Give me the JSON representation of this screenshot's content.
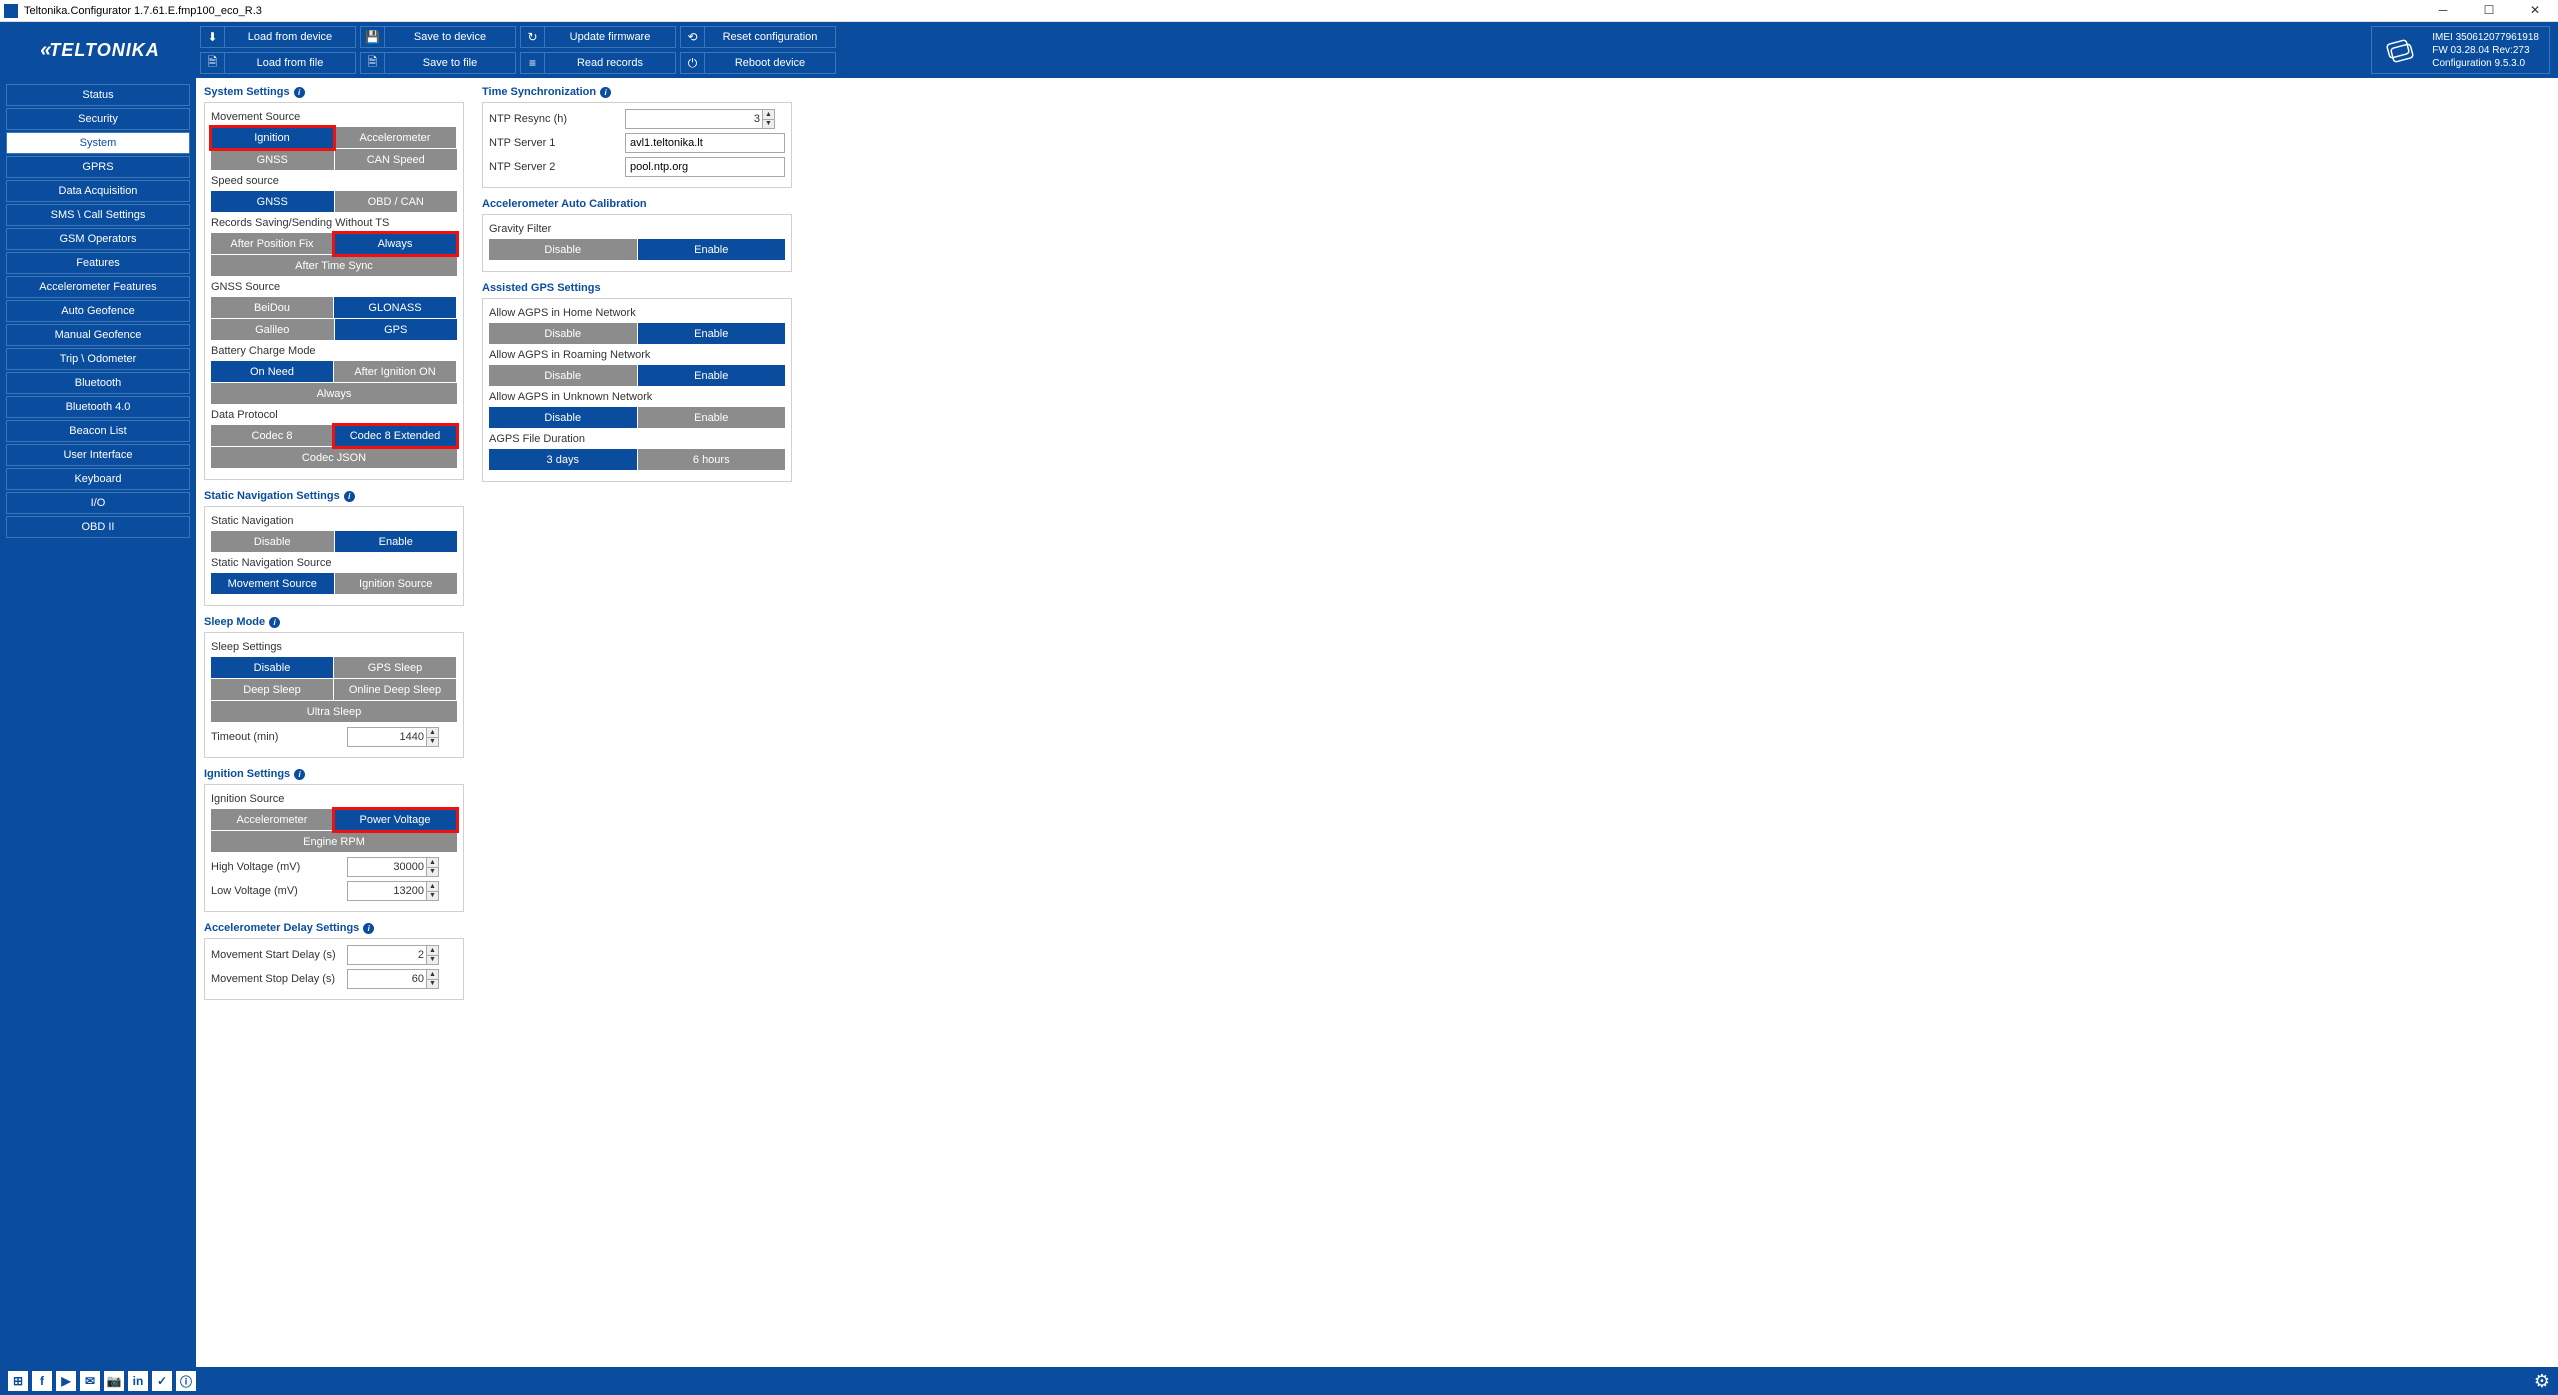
{
  "window": {
    "title": "Teltonika.Configurator 1.7.61.E.fmp100_eco_R.3"
  },
  "colors": {
    "primary": "#0a4d9e",
    "seg_inactive": "#8c8c8c",
    "highlight": "#e11",
    "border": "#d0d0d0"
  },
  "logo": "TELTONIKA",
  "toolbar": {
    "row1": [
      {
        "icon": "⬇",
        "label": "Load from device"
      },
      {
        "icon": "💾",
        "label": "Save to device"
      },
      {
        "icon": "↻",
        "label": "Update firmware"
      },
      {
        "icon": "⟲",
        "label": "Reset configuration"
      }
    ],
    "row2": [
      {
        "icon": "🗎",
        "label": "Load from file"
      },
      {
        "icon": "🗎",
        "label": "Save to file"
      },
      {
        "icon": "≡",
        "label": "Read records"
      },
      {
        "icon": "⏻",
        "label": "Reboot device"
      }
    ]
  },
  "deviceInfo": {
    "imei": "IMEI 350612077961918",
    "fw": "FW 03.28.04 Rev:273",
    "cfg": "Configuration 9.5.3.0"
  },
  "sidebar": {
    "items": [
      "Status",
      "Security",
      "System",
      "GPRS",
      "Data Acquisition",
      "SMS \\ Call Settings",
      "GSM Operators",
      "Features",
      "Accelerometer Features",
      "Auto Geofence",
      "Manual Geofence",
      "Trip \\ Odometer",
      "Bluetooth",
      "Bluetooth 4.0",
      "Beacon List",
      "User Interface",
      "Keyboard",
      "I/O",
      "OBD II"
    ],
    "active": 2
  },
  "systemSettings": {
    "title": "System Settings",
    "movementSource": {
      "label": "Movement Source",
      "options": [
        "Ignition",
        "Accelerometer",
        "GNSS",
        "CAN Speed"
      ],
      "active": 0,
      "highlight": 0
    },
    "speedSource": {
      "label": "Speed source",
      "options": [
        "GNSS",
        "OBD / CAN"
      ],
      "active": 0
    },
    "recordsSaving": {
      "label": "Records Saving/Sending Without TS",
      "options": [
        "After Position Fix",
        "Always",
        "After Time Sync"
      ],
      "active": 1,
      "highlight": 1
    },
    "gnssSource": {
      "label": "GNSS Source",
      "options": [
        "BeiDou",
        "GLONASS",
        "Galileo",
        "GPS"
      ],
      "active": [
        1,
        3
      ]
    },
    "batteryCharge": {
      "label": "Battery Charge Mode",
      "options": [
        "On Need",
        "After Ignition ON",
        "Always"
      ],
      "active": 0
    },
    "dataProtocol": {
      "label": "Data Protocol",
      "options": [
        "Codec 8",
        "Codec 8 Extended",
        "Codec JSON"
      ],
      "active": 1,
      "highlight": 1
    }
  },
  "staticNav": {
    "title": "Static Navigation Settings",
    "nav": {
      "label": "Static Navigation",
      "options": [
        "Disable",
        "Enable"
      ],
      "active": 1
    },
    "source": {
      "label": "Static Navigation Source",
      "options": [
        "Movement Source",
        "Ignition Source"
      ],
      "active": 0
    }
  },
  "sleep": {
    "title": "Sleep Mode",
    "settings": {
      "label": "Sleep Settings",
      "options": [
        "Disable",
        "GPS Sleep",
        "Deep Sleep",
        "Online Deep Sleep",
        "Ultra Sleep"
      ],
      "active": 0
    },
    "timeout": {
      "label": "Timeout  (min)",
      "value": "1440"
    }
  },
  "ignition": {
    "title": "Ignition Settings",
    "source": {
      "label": "Ignition Source",
      "options": [
        "Accelerometer",
        "Power Voltage",
        "Engine RPM"
      ],
      "active": 1,
      "highlight": 1
    },
    "high": {
      "label": "High Voltage   (mV)",
      "value": "30000"
    },
    "low": {
      "label": "Low Voltage   (mV)",
      "value": "13200"
    }
  },
  "accelDelay": {
    "title": "Accelerometer Delay Settings",
    "start": {
      "label": "Movement Start Delay   (s)",
      "value": "2"
    },
    "stop": {
      "label": "Movement Stop Delay   (s)",
      "value": "60"
    }
  },
  "timeSync": {
    "title": "Time Synchronization",
    "resync": {
      "label": "NTP Resync  (h)",
      "value": "3"
    },
    "s1": {
      "label": "NTP Server 1",
      "value": "avl1.teltonika.lt"
    },
    "s2": {
      "label": "NTP Server 2",
      "value": "pool.ntp.org"
    }
  },
  "accelCal": {
    "title": "Accelerometer Auto Calibration",
    "gravity": {
      "label": "Gravity Filter",
      "options": [
        "Disable",
        "Enable"
      ],
      "active": 1
    }
  },
  "agps": {
    "title": "Assisted GPS Settings",
    "home": {
      "label": "Allow AGPS in Home Network",
      "options": [
        "Disable",
        "Enable"
      ],
      "active": 1
    },
    "roaming": {
      "label": "Allow AGPS in Roaming Network",
      "options": [
        "Disable",
        "Enable"
      ],
      "active": 1
    },
    "unknown": {
      "label": "Allow AGPS in Unknown Network",
      "options": [
        "Disable",
        "Enable"
      ],
      "active": 0
    },
    "duration": {
      "label": "AGPS File Duration",
      "options": [
        "3 days",
        "6 hours"
      ],
      "active": 0
    }
  },
  "footerIcons": [
    "⊞",
    "f",
    "▶",
    "✉",
    "📷",
    "in",
    "✓",
    "ⓘ"
  ]
}
